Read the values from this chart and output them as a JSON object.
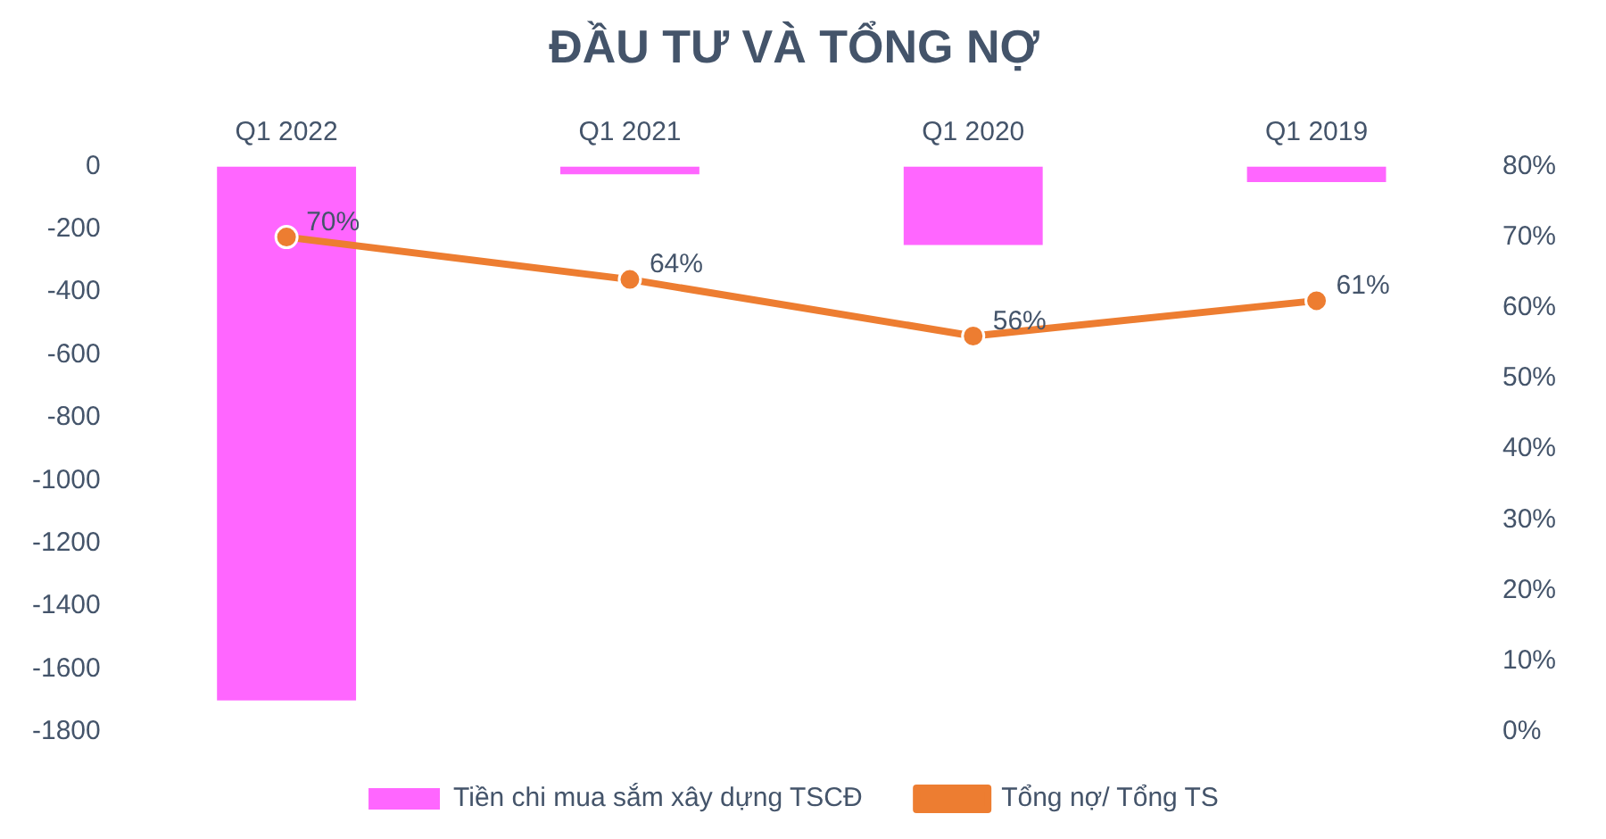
{
  "chart_data": {
    "type": "bar",
    "title": "ĐẦU TƯ VÀ TỔNG NỢ",
    "categories": [
      "Q1 2022",
      "Q1 2021",
      "Q1 2020",
      "Q1 2019"
    ],
    "series": [
      {
        "name": "Tiền chi mua sắm xây dựng TSCĐ",
        "color": "#ff66ff",
        "values": [
          -1700,
          -25,
          -250,
          -50
        ]
      },
      {
        "name": "Tổng nợ/ Tổng TS",
        "type": "line",
        "axis": "y2",
        "color": "#ed7d31",
        "values": [
          70,
          64,
          56,
          61
        ],
        "value_labels": [
          "70%",
          "64%",
          "56%",
          "61%"
        ]
      }
    ],
    "ylim": [
      -1800,
      0
    ],
    "yticks": [
      0,
      -200,
      -400,
      -600,
      -800,
      -1000,
      -1200,
      -1400,
      -1600,
      -1800
    ],
    "y2lim": [
      0,
      80
    ],
    "y2ticks": [
      {
        "value": 0,
        "label": "0%"
      },
      {
        "value": 10,
        "label": "10%"
      },
      {
        "value": 20,
        "label": "20%"
      },
      {
        "value": 30,
        "label": "30%"
      },
      {
        "value": 40,
        "label": "40%"
      },
      {
        "value": 50,
        "label": "50%"
      },
      {
        "value": 60,
        "label": "60%"
      },
      {
        "value": 70,
        "label": "70%"
      },
      {
        "value": 80,
        "label": "80%"
      }
    ],
    "legend": "bottom",
    "grid": false,
    "marker": "circle"
  }
}
